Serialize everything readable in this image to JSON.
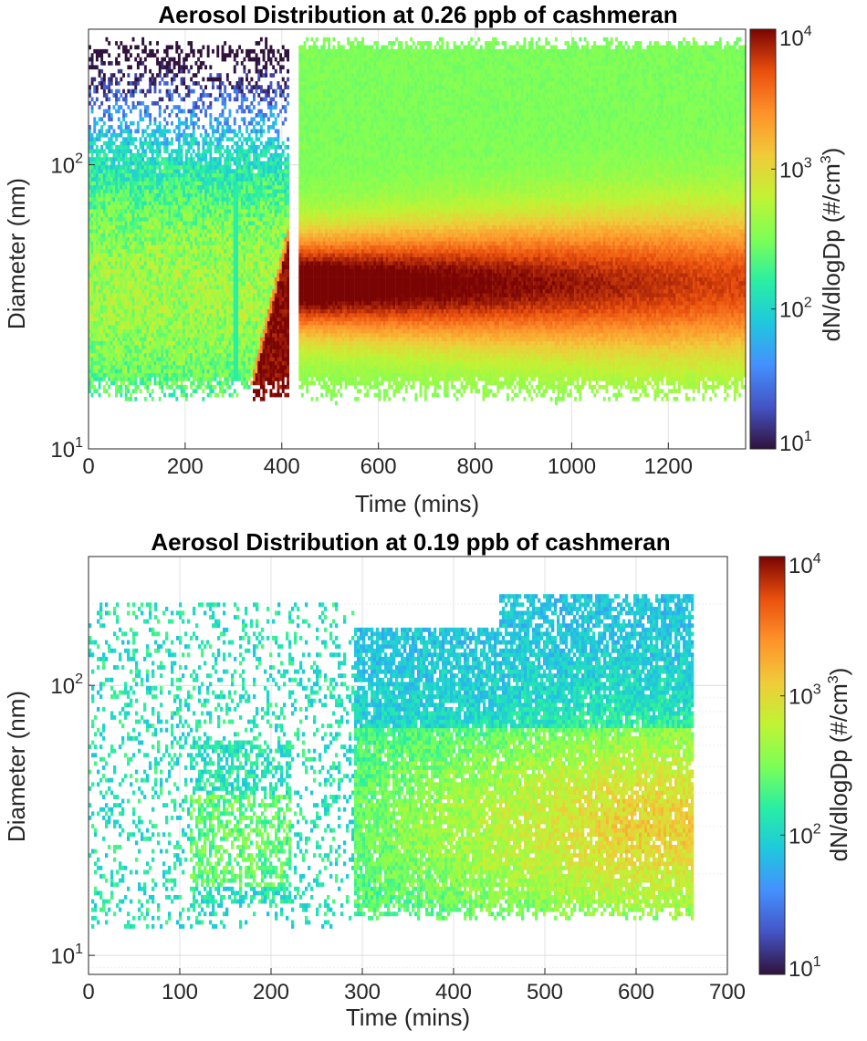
{
  "chart_data": [
    {
      "type": "heatmap",
      "title": "Aerosol Distribution at 0.26 ppb of cashmeran",
      "xlabel": "Time (mins)",
      "ylabel": "Diameter (nm)",
      "colorbar_label": "dN/dlogDp (#/cm",
      "colorbar_label_sup": "3",
      "colorbar_label_close": ")",
      "xlim": [
        0,
        1360
      ],
      "ylim": [
        10,
        300
      ],
      "y_scale": "log",
      "x_ticks": [
        "0",
        "200",
        "400",
        "600",
        "800",
        "1000",
        "1200"
      ],
      "x_tick_values": [
        0,
        200,
        400,
        600,
        800,
        1000,
        1200
      ],
      "y_ticks": [
        {
          "base": "10",
          "exp": "1",
          "value": 10
        },
        {
          "base": "10",
          "exp": "2",
          "value": 100
        }
      ],
      "colorbar_ticks": [
        {
          "base": "10",
          "exp": "1",
          "value": 10
        },
        {
          "base": "10",
          "exp": "2",
          "value": 100
        },
        {
          "base": "10",
          "exp": "3",
          "value": 1000
        },
        {
          "base": "10",
          "exp": "4",
          "value": 10000
        }
      ],
      "colorbar_range": [
        10,
        10000
      ],
      "colormap": "turbo",
      "grid": true,
      "data_gap_minutes": [
        412,
        432
      ],
      "data_end_minutes": 1360,
      "nucleation_onset_minutes": 300,
      "mode_diameter_nm": {
        "early": 38,
        "late": 42
      }
    },
    {
      "type": "heatmap",
      "title": "Aerosol Distribution at 0.19 ppb of cashmeran",
      "xlabel": "Time (mins)",
      "ylabel": "Diameter (nm)",
      "colorbar_label": "dN/dlogDp (#/cm",
      "colorbar_label_sup": "3",
      "colorbar_label_close": ")",
      "xlim": [
        0,
        700
      ],
      "ylim": [
        8.5,
        300
      ],
      "y_scale": "log",
      "x_ticks": [
        "0",
        "100",
        "200",
        "300",
        "400",
        "500",
        "600",
        "700"
      ],
      "x_tick_values": [
        0,
        100,
        200,
        300,
        400,
        500,
        600,
        700
      ],
      "y_ticks": [
        {
          "base": "10",
          "exp": "1",
          "value": 10
        },
        {
          "base": "10",
          "exp": "2",
          "value": 100
        }
      ],
      "colorbar_ticks": [
        {
          "base": "10",
          "exp": "1",
          "value": 10
        },
        {
          "base": "10",
          "exp": "2",
          "value": 100
        },
        {
          "base": "10",
          "exp": "3",
          "value": 1000
        },
        {
          "base": "10",
          "exp": "4",
          "value": 10000
        }
      ],
      "colorbar_range": [
        10,
        10000
      ],
      "colormap": "turbo",
      "grid": true,
      "data_end_minutes": 662,
      "mode_diameter_nm": {
        "late": 30
      }
    }
  ]
}
